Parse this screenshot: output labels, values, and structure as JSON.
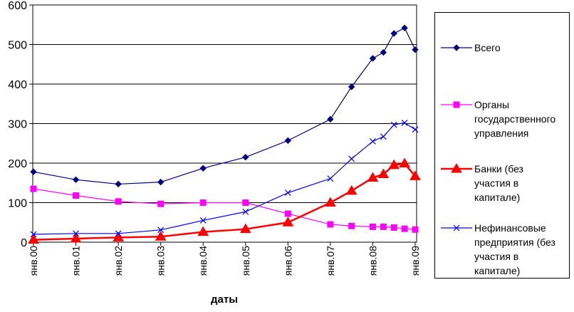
{
  "chart_data": {
    "type": "line",
    "title": "",
    "xlabel": "даты",
    "ylabel": "",
    "ylim": [
      0,
      600
    ],
    "yticks": [
      "0",
      "100",
      "200",
      "300",
      "400",
      "500",
      "600"
    ],
    "grid": "horizontal",
    "legend_position": "right",
    "categories": [
      "янв.00",
      "янв.01",
      "янв.02",
      "янв.03",
      "янв.04",
      "янв.05",
      "янв.06",
      "янв.07",
      "янв.08",
      "янв.09"
    ],
    "series": [
      {
        "name": "Всего",
        "color": "#000080",
        "marker": "diamond",
        "points": [
          [
            0,
            178
          ],
          [
            1,
            158
          ],
          [
            2,
            147
          ],
          [
            3,
            152
          ],
          [
            4,
            187
          ],
          [
            5,
            215
          ],
          [
            6,
            257
          ],
          [
            7,
            311
          ],
          [
            7.5,
            393
          ],
          [
            8,
            465
          ],
          [
            8.25,
            480
          ],
          [
            8.5,
            528
          ],
          [
            8.75,
            542
          ],
          [
            9,
            487
          ]
        ]
      },
      {
        "name": "Органы государственного управления",
        "color": "#ff00ff",
        "marker": "square",
        "points": [
          [
            0,
            135
          ],
          [
            1,
            118
          ],
          [
            2,
            103
          ],
          [
            3,
            97
          ],
          [
            4,
            100
          ],
          [
            5,
            100
          ],
          [
            6,
            72
          ],
          [
            7,
            45
          ],
          [
            7.5,
            41
          ],
          [
            8,
            39
          ],
          [
            8.25,
            39
          ],
          [
            8.5,
            37
          ],
          [
            8.75,
            34
          ],
          [
            9,
            32
          ]
        ]
      },
      {
        "name": "Банки (без участия в капитале)",
        "color": "#ff0000",
        "marker": "triangle",
        "points": [
          [
            0,
            6
          ],
          [
            1,
            9
          ],
          [
            2,
            12
          ],
          [
            3,
            14
          ],
          [
            4,
            26
          ],
          [
            5,
            33
          ],
          [
            6,
            50
          ],
          [
            7,
            100
          ],
          [
            7.5,
            130
          ],
          [
            8,
            163
          ],
          [
            8.25,
            172
          ],
          [
            8.5,
            195
          ],
          [
            8.75,
            199
          ],
          [
            9,
            167
          ]
        ]
      },
      {
        "name": "Нефинансовые предприятия (без участия в капитале)",
        "color": "#0000ff",
        "marker": "x",
        "points": [
          [
            0,
            20
          ],
          [
            1,
            22
          ],
          [
            2,
            22
          ],
          [
            3,
            31
          ],
          [
            4,
            55
          ],
          [
            5,
            77
          ],
          [
            6,
            125
          ],
          [
            7,
            161
          ],
          [
            7.5,
            211
          ],
          [
            8,
            255
          ],
          [
            8.25,
            267
          ],
          [
            8.5,
            297
          ],
          [
            8.75,
            302
          ],
          [
            9,
            285
          ]
        ]
      }
    ]
  },
  "legend_lines": [
    [
      "Всего"
    ],
    [
      "Органы",
      "государственного",
      "управления"
    ],
    [
      "Банки (без",
      "участия в",
      "капитале)"
    ],
    [
      "Нефинансовые",
      "предприятия (без",
      "участия в",
      "капитале)"
    ]
  ]
}
